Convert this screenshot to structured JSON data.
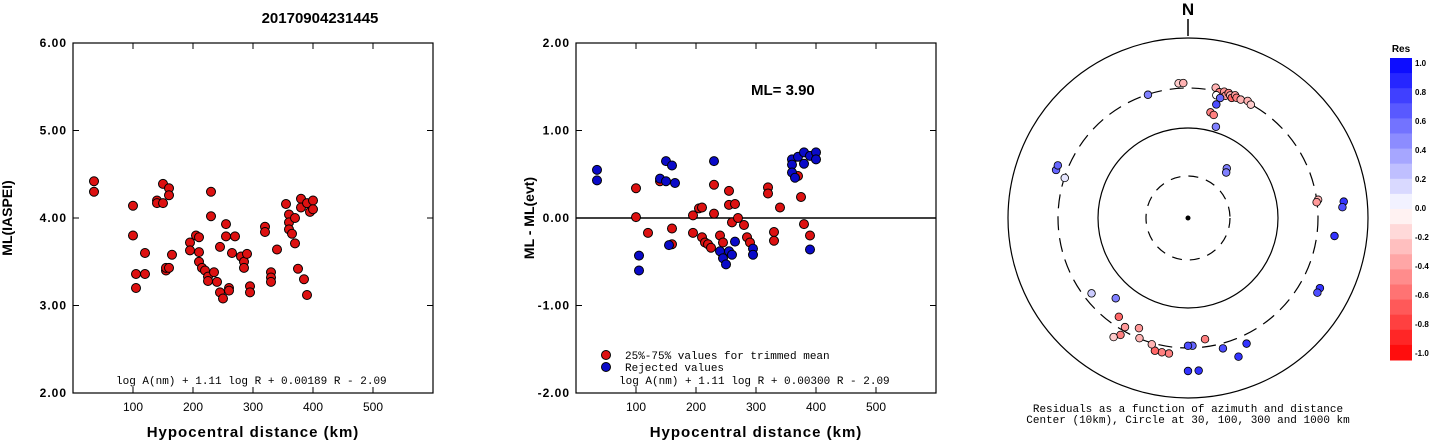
{
  "event_id": "20170904231445",
  "colors": {
    "accepted": "#dd1111",
    "rejected": "#0a0ac8",
    "residual_positive": "#0000ff",
    "residual_negative": "#ff0000"
  },
  "chart_data": [
    {
      "type": "scatter",
      "ylabel": "ML(IASPEI)",
      "xlabel": "Hypocentral distance (km)",
      "xlim": [
        0,
        600
      ],
      "ylim": [
        2.0,
        6.0
      ],
      "x_ticks": [
        "100",
        "200",
        "300",
        "400",
        "500"
      ],
      "y_ticks": [
        "2.00",
        "3.00",
        "4.00",
        "5.00",
        "6.00"
      ],
      "formula": "log A(nm) + 1.11 log R + 0.00189 R - 2.09",
      "series": [
        {
          "points": [
            [
              35,
              4.42
            ],
            [
              35,
              4.3
            ],
            [
              100,
              4.14
            ],
            [
              100,
              3.8
            ],
            [
              105,
              3.36
            ],
            [
              105,
              3.2
            ],
            [
              120,
              3.6
            ],
            [
              120,
              3.36
            ],
            [
              140,
              4.2
            ],
            [
              140,
              4.17
            ],
            [
              150,
              4.39
            ],
            [
              150,
              4.17
            ],
            [
              155,
              3.4
            ],
            [
              155,
              3.43
            ],
            [
              160,
              4.34
            ],
            [
              160,
              4.26
            ],
            [
              160,
              3.43
            ],
            [
              165,
              3.58
            ],
            [
              195,
              3.72
            ],
            [
              195,
              3.63
            ],
            [
              205,
              3.8
            ],
            [
              210,
              3.78
            ],
            [
              210,
              3.61
            ],
            [
              210,
              3.5
            ],
            [
              215,
              3.43
            ],
            [
              220,
              3.4
            ],
            [
              225,
              3.33
            ],
            [
              225,
              3.28
            ],
            [
              230,
              4.3
            ],
            [
              230,
              4.02
            ],
            [
              235,
              3.38
            ],
            [
              240,
              3.27
            ],
            [
              245,
              3.67
            ],
            [
              245,
              3.15
            ],
            [
              250,
              3.08
            ],
            [
              255,
              3.93
            ],
            [
              255,
              3.79
            ],
            [
              260,
              3.2
            ],
            [
              260,
              3.17
            ],
            [
              265,
              3.6
            ],
            [
              270,
              3.79
            ],
            [
              280,
              3.56
            ],
            [
              285,
              3.5
            ],
            [
              285,
              3.43
            ],
            [
              290,
              3.59
            ],
            [
              295,
              3.22
            ],
            [
              295,
              3.15
            ],
            [
              320,
              3.9
            ],
            [
              320,
              3.84
            ],
            [
              330,
              3.38
            ],
            [
              330,
              3.32
            ],
            [
              330,
              3.27
            ],
            [
              340,
              3.64
            ],
            [
              355,
              4.16
            ],
            [
              360,
              4.04
            ],
            [
              360,
              3.95
            ],
            [
              360,
              3.87
            ],
            [
              365,
              3.82
            ],
            [
              370,
              4.0
            ],
            [
              370,
              3.71
            ],
            [
              375,
              3.42
            ],
            [
              380,
              4.22
            ],
            [
              380,
              4.12
            ],
            [
              385,
              3.3
            ],
            [
              390,
              4.17
            ],
            [
              390,
              3.12
            ],
            [
              395,
              4.07
            ],
            [
              400,
              4.2
            ],
            [
              400,
              4.1
            ]
          ]
        }
      ]
    },
    {
      "type": "scatter",
      "ylabel": "ML - ML(evt)",
      "xlabel": "Hypocentral distance (km)",
      "xlim": [
        0,
        600
      ],
      "ylim": [
        -2.0,
        2.0
      ],
      "x_ticks": [
        "100",
        "200",
        "300",
        "400",
        "500"
      ],
      "y_ticks": [
        "-2.00",
        "-1.00",
        "0.00",
        "1.00",
        "2.00"
      ],
      "annotation": "ML= 3.90",
      "formula": "log A(nm) + 1.11 log R + 0.00300 R - 2.09",
      "series": [
        {
          "name": "25%-75% values for trimmed mean",
          "points": [
            [
              100,
              0.34
            ],
            [
              100,
              0.01
            ],
            [
              120,
              -0.17
            ],
            [
              140,
              0.42
            ],
            [
              160,
              -0.12
            ],
            [
              160,
              -0.3
            ],
            [
              195,
              0.03
            ],
            [
              195,
              -0.17
            ],
            [
              205,
              0.11
            ],
            [
              210,
              0.12
            ],
            [
              210,
              -0.22
            ],
            [
              215,
              -0.28
            ],
            [
              220,
              -0.3
            ],
            [
              225,
              -0.34
            ],
            [
              230,
              0.38
            ],
            [
              230,
              0.05
            ],
            [
              240,
              -0.2
            ],
            [
              245,
              -0.28
            ],
            [
              255,
              0.31
            ],
            [
              255,
              0.15
            ],
            [
              260,
              -0.05
            ],
            [
              265,
              0.16
            ],
            [
              270,
              0.0
            ],
            [
              280,
              -0.08
            ],
            [
              285,
              -0.22
            ],
            [
              290,
              -0.28
            ],
            [
              320,
              0.35
            ],
            [
              320,
              0.28
            ],
            [
              330,
              -0.16
            ],
            [
              330,
              -0.26
            ],
            [
              340,
              0.12
            ],
            [
              370,
              0.48
            ],
            [
              375,
              0.24
            ],
            [
              380,
              -0.07
            ],
            [
              390,
              -0.2
            ]
          ]
        },
        {
          "name": "Rejected values",
          "points": [
            [
              35,
              0.55
            ],
            [
              35,
              0.43
            ],
            [
              105,
              -0.43
            ],
            [
              105,
              -0.6
            ],
            [
              140,
              0.45
            ],
            [
              150,
              0.65
            ],
            [
              150,
              0.42
            ],
            [
              155,
              -0.31
            ],
            [
              160,
              0.6
            ],
            [
              165,
              0.4
            ],
            [
              230,
              0.65
            ],
            [
              240,
              -0.38
            ],
            [
              245,
              -0.46
            ],
            [
              250,
              -0.53
            ],
            [
              255,
              -0.38
            ],
            [
              260,
              -0.42
            ],
            [
              265,
              -0.27
            ],
            [
              295,
              -0.35
            ],
            [
              295,
              -0.42
            ],
            [
              360,
              0.67
            ],
            [
              360,
              0.61
            ],
            [
              360,
              0.52
            ],
            [
              365,
              0.46
            ],
            [
              370,
              0.7
            ],
            [
              380,
              0.75
            ],
            [
              380,
              0.62
            ],
            [
              390,
              0.71
            ],
            [
              390,
              -0.36
            ],
            [
              400,
              0.75
            ],
            [
              400,
              0.67
            ]
          ]
        }
      ]
    }
  ],
  "polar": {
    "north_label": "N",
    "caption_line1": "Residuals as a function of azimuth and distance",
    "caption_line2": "Center (10km), Circle at 30, 100, 300 and 1000 km",
    "points": [
      {
        "az": 356,
        "d": 0.75,
        "res": -0.2
      },
      {
        "az": 358,
        "d": 0.75,
        "res": -0.3
      },
      {
        "az": 342,
        "d": 0.72,
        "res": 0.5
      },
      {
        "az": 12,
        "d": 0.74,
        "res": -0.3
      },
      {
        "az": 14,
        "d": 0.72,
        "res": -0.5
      },
      {
        "az": 16,
        "d": 0.73,
        "res": -0.4
      },
      {
        "az": 17,
        "d": 0.71,
        "res": -0.4
      },
      {
        "az": 18,
        "d": 0.73,
        "res": -0.5
      },
      {
        "az": 19,
        "d": 0.72,
        "res": -0.3
      },
      {
        "az": 20,
        "d": 0.71,
        "res": -0.6
      },
      {
        "az": 21,
        "d": 0.73,
        "res": -0.4
      },
      {
        "az": 22,
        "d": 0.72,
        "res": -0.5
      },
      {
        "az": 24,
        "d": 0.72,
        "res": -0.3
      },
      {
        "az": 27,
        "d": 0.73,
        "res": -0.3
      },
      {
        "az": 29,
        "d": 0.72,
        "res": -0.2
      },
      {
        "az": 13,
        "d": 0.7,
        "res": 0.0
      },
      {
        "az": 15,
        "d": 0.69,
        "res": 0.6
      },
      {
        "az": 14,
        "d": 0.65,
        "res": 0.7
      },
      {
        "az": 12,
        "d": 0.6,
        "res": -0.5
      },
      {
        "az": 14,
        "d": 0.59,
        "res": -0.5
      },
      {
        "az": 17,
        "d": 0.53,
        "res": 0.5
      },
      {
        "az": 38,
        "d": 0.35,
        "res": 0.5
      },
      {
        "az": 40,
        "d": 0.33,
        "res": 0.5
      },
      {
        "az": 82,
        "d": 0.73,
        "res": -0.3
      },
      {
        "az": 83,
        "d": 0.72,
        "res": -0.4
      },
      {
        "az": 84,
        "d": 0.87,
        "res": 0.8
      },
      {
        "az": 86,
        "d": 0.86,
        "res": 0.7
      },
      {
        "az": 97,
        "d": 0.82,
        "res": 0.8
      },
      {
        "az": 118,
        "d": 0.83,
        "res": 0.8
      },
      {
        "az": 120,
        "d": 0.83,
        "res": 0.7
      },
      {
        "az": 155,
        "d": 0.77,
        "res": 0.8
      },
      {
        "az": 160,
        "d": 0.82,
        "res": 0.8
      },
      {
        "az": 165,
        "d": 0.75,
        "res": 0.7
      },
      {
        "az": 172,
        "d": 0.68,
        "res": -0.5
      },
      {
        "az": 178,
        "d": 0.71,
        "res": 0.6
      },
      {
        "az": 180,
        "d": 0.71,
        "res": 0.7
      },
      {
        "az": 176,
        "d": 0.85,
        "res": 0.8
      },
      {
        "az": 180,
        "d": 0.85,
        "res": 0.8
      },
      {
        "az": 188,
        "d": 0.76,
        "res": -0.5
      },
      {
        "az": 191,
        "d": 0.76,
        "res": -0.5
      },
      {
        "az": 194,
        "d": 0.76,
        "res": -0.6
      },
      {
        "az": 196,
        "d": 0.73,
        "res": -0.3
      },
      {
        "az": 202,
        "d": 0.72,
        "res": -0.3
      },
      {
        "az": 204,
        "d": 0.67,
        "res": -0.4
      },
      {
        "az": 210,
        "d": 0.7,
        "res": -0.4
      },
      {
        "az": 210,
        "d": 0.75,
        "res": -0.5
      },
      {
        "az": 212,
        "d": 0.78,
        "res": -0.2
      },
      {
        "az": 215,
        "d": 0.67,
        "res": -0.6
      },
      {
        "az": 222,
        "d": 0.6,
        "res": 0.5
      },
      {
        "az": 232,
        "d": 0.68,
        "res": 0.2
      },
      {
        "az": 288,
        "d": 0.72,
        "res": 0.1
      },
      {
        "az": 290,
        "d": 0.78,
        "res": 0.6
      },
      {
        "az": 292,
        "d": 0.78,
        "res": 0.6
      }
    ]
  },
  "colorbar": {
    "title": "Res",
    "labels": [
      "1.0",
      "0.8",
      "0.6",
      "0.4",
      "0.2",
      "0.0",
      "-0.2",
      "-0.4",
      "-0.6",
      "-0.8",
      "-1.0"
    ]
  }
}
